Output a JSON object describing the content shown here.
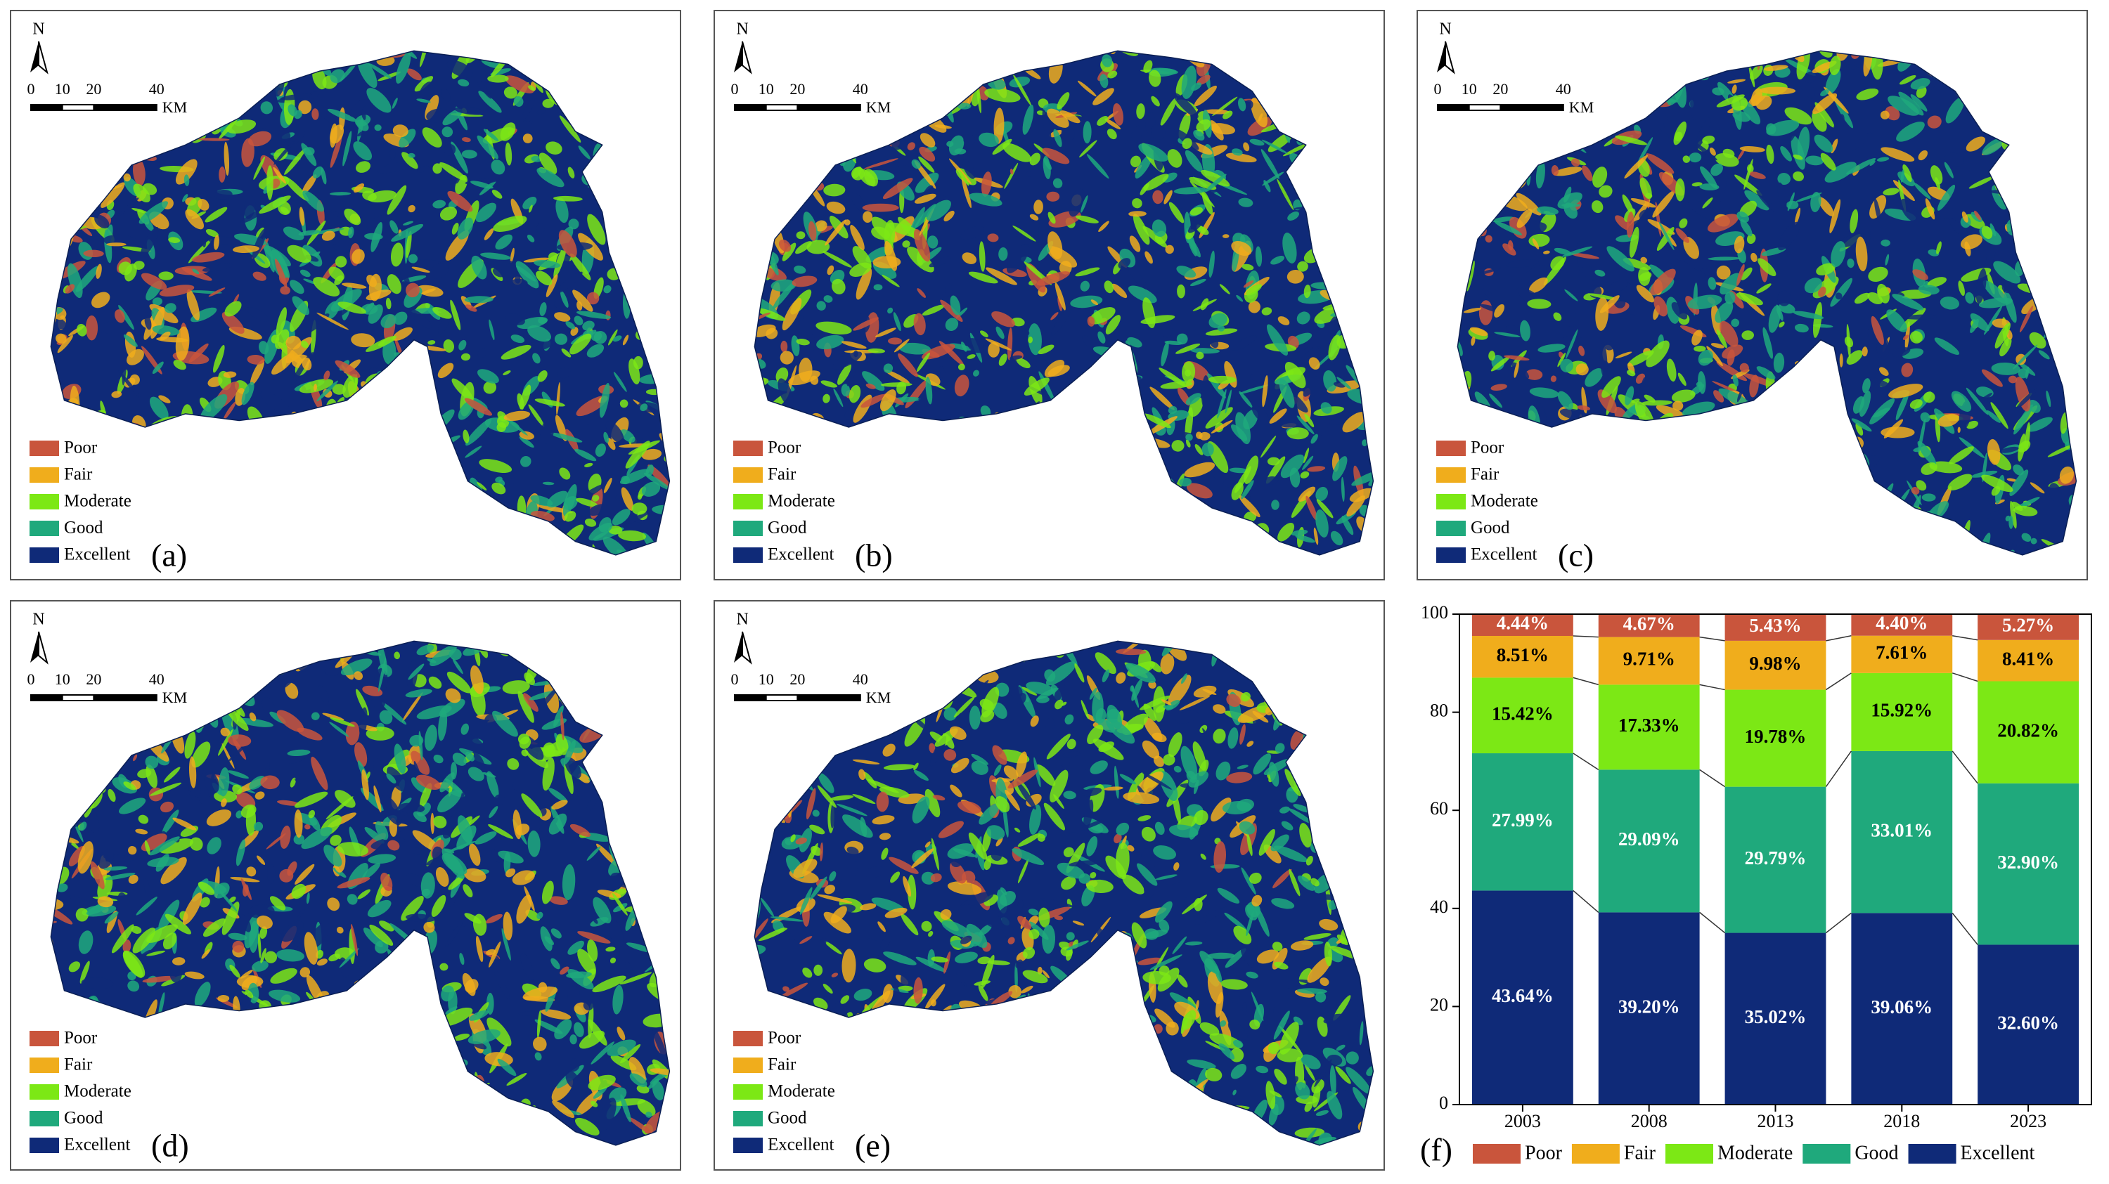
{
  "maps": {
    "north": "N",
    "unit": "KM",
    "scale_ticks": [
      0,
      10,
      20,
      40
    ],
    "legend": [
      {
        "name": "Poor",
        "color": "#c9553c"
      },
      {
        "name": "Fair",
        "color": "#f0ad1c"
      },
      {
        "name": "Moderate",
        "color": "#7ce815"
      },
      {
        "name": "Good",
        "color": "#1fa97c"
      },
      {
        "name": "Excellent",
        "color": "#0f2a78"
      }
    ],
    "panels": [
      "(a)",
      "(b)",
      "(c)",
      "(d)",
      "(e)"
    ]
  },
  "chart_data": {
    "type": "bar",
    "stacked": true,
    "panel_label": "(f)",
    "categories": [
      "2003",
      "2008",
      "2013",
      "2018",
      "2023"
    ],
    "ylim": [
      0,
      100
    ],
    "yticks": [
      0,
      20,
      40,
      60,
      80,
      100
    ],
    "series": [
      {
        "name": "Poor",
        "color": "#c9553c",
        "label_color": "#ffffff",
        "values": [
          4.44,
          4.67,
          5.43,
          4.4,
          5.27
        ],
        "value_labels": [
          "4.44%",
          "4.67%",
          "5.43%",
          "4.40%",
          "5.27%"
        ]
      },
      {
        "name": "Fair",
        "color": "#f0ad1c",
        "label_color": "#000000",
        "values": [
          8.51,
          9.71,
          9.98,
          7.61,
          8.41
        ],
        "value_labels": [
          "8.51%",
          "9.71%",
          "9.98%",
          "7.61%",
          "8.41%"
        ]
      },
      {
        "name": "Moderate",
        "color": "#7ce815",
        "label_color": "#000000",
        "values": [
          15.42,
          17.33,
          19.78,
          15.92,
          20.82
        ],
        "value_labels": [
          "15.42%",
          "17.33%",
          "19.78%",
          "15.92%",
          "20.82%"
        ]
      },
      {
        "name": "Good",
        "color": "#1fa97c",
        "label_color": "#ffffff",
        "values": [
          27.99,
          29.09,
          29.79,
          33.01,
          32.9
        ],
        "value_labels": [
          "27.99%",
          "29.09%",
          "29.79%",
          "33.01%",
          "32.90%"
        ]
      },
      {
        "name": "Excellent",
        "color": "#0f2a78",
        "label_color": "#ffffff",
        "values": [
          43.64,
          39.2,
          35.02,
          39.06,
          32.6
        ],
        "value_labels": [
          "43.64%",
          "39.20%",
          "35.02%",
          "39.06%",
          "32.60%"
        ]
      }
    ]
  }
}
